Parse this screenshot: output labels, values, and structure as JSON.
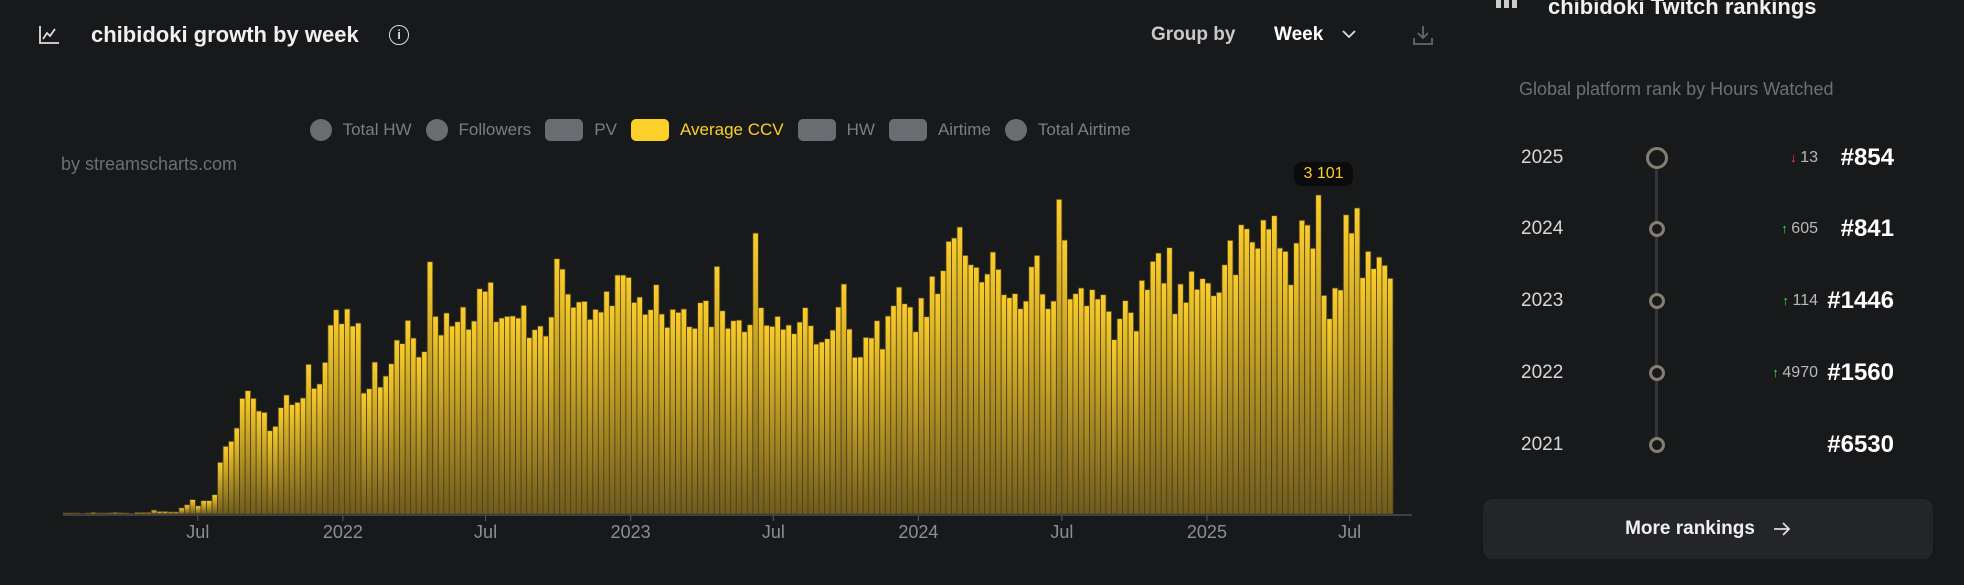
{
  "header": {
    "title": "chibidoki growth by week",
    "group_by_label": "Group by",
    "group_by_value": "Week"
  },
  "legend": [
    {
      "label": "Total HW",
      "shape": "circle",
      "active": false
    },
    {
      "label": "Followers",
      "shape": "circle",
      "active": false
    },
    {
      "label": "PV",
      "shape": "square",
      "active": false
    },
    {
      "label": "Average CCV",
      "shape": "square",
      "active": true
    },
    {
      "label": "HW",
      "shape": "square",
      "active": false
    },
    {
      "label": "Airtime",
      "shape": "square",
      "active": false
    },
    {
      "label": "Total Airtime",
      "shape": "circle",
      "active": false
    }
  ],
  "credit": "by streamscharts.com",
  "tooltip": {
    "text": "3 101"
  },
  "colors": {
    "bar_top": "#fbcd2b",
    "bar_bottom": "#6f5b1e",
    "accent": "#fcd02a",
    "up": "#3ddc4a",
    "down": "#f04a4a"
  },
  "chart_data": {
    "type": "bar",
    "title": "chibidoki growth by week",
    "series_name": "Average CCV",
    "start_week": "2021-01-11",
    "ylim": [
      0,
      3101
    ],
    "grid": false,
    "x_ticks": [
      {
        "label": "Jul",
        "date": "2021-07-01"
      },
      {
        "label": "2022",
        "date": "2022-01-01"
      },
      {
        "label": "Jul",
        "date": "2022-07-01"
      },
      {
        "label": "2023",
        "date": "2023-01-01"
      },
      {
        "label": "Jul",
        "date": "2023-07-01"
      },
      {
        "label": "2024",
        "date": "2024-01-01"
      },
      {
        "label": "Jul",
        "date": "2024-07-01"
      },
      {
        "label": "2025",
        "date": "2025-01-01"
      },
      {
        "label": "Jul",
        "date": "2025-07-01"
      }
    ],
    "values": [
      10,
      10,
      10,
      5,
      10,
      15,
      10,
      10,
      12,
      15,
      12,
      10,
      5,
      15,
      15,
      15,
      38,
      25,
      25,
      20,
      20,
      60,
      90,
      140,
      80,
      130,
      130,
      188,
      502,
      658,
      706,
      836,
      1124,
      1199,
      1124,
      1001,
      988,
      810,
      852,
      1034,
      1157,
      1063,
      1085,
      1128,
      1455,
      1221,
      1264,
      1474,
      1837,
      1986,
      1850,
      1993,
      1827,
      1856,
      1176,
      1218,
      1477,
      1234,
      1341,
      1461,
      1691,
      1656,
      1882,
      1711,
      1526,
      1578,
      2453,
      1921,
      1740,
      1954,
      1827,
      1869,
      2012,
      1795,
      1876,
      2190,
      2164,
      2252,
      1869,
      1905,
      1921,
      1925,
      1905,
      2028,
      1714,
      1792,
      1827,
      1730,
      1915,
      2482,
      2381,
      2138,
      2009,
      2061,
      2067,
      1892,
      1989,
      1963,
      2164,
      2025,
      2323,
      2323,
      2300,
      2057,
      2109,
      1941,
      1986,
      2229,
      1944,
      1814,
      1989,
      1960,
      1993,
      1821,
      1805,
      2054,
      2074,
      1821,
      2407,
      1976,
      1805,
      1879,
      1885,
      1772,
      1840,
      2731,
      2006,
      1834,
      1824,
      1921,
      1795,
      1837,
      1753,
      1866,
      2006,
      1831,
      1652,
      1672,
      1704,
      1788,
      2012,
      2236,
      1798,
      1523,
      1526,
      1717,
      1711,
      1879,
      1604,
      1925,
      2025,
      2206,
      2044,
      2012,
      1772,
      2100,
      1918,
      2310,
      2142,
      2365,
      2650,
      2683,
      2790,
      2514,
      2423,
      2398,
      2255,
      2333,
      2547,
      2378,
      2132,
      2103,
      2142,
      1996,
      2070,
      2404,
      2514,
      2138,
      1996,
      2070,
      3059,
      2663,
      2090,
      2142,
      2197,
      2025,
      2181,
      2090,
      2132,
      1970,
      1695,
      1899,
      2074,
      1959,
      1779,
      2271,
      2181,
      2456,
      2537,
      2245,
      2589,
      1947,
      2236,
      2057,
      2359,
      2184,
      2288,
      2245,
      2122,
      2155,
      2423,
      2660,
      2326,
      2812,
      2773,
      2644,
      2583,
      2858,
      2770,
      2900,
      2586,
      2553,
      2229,
      2634,
      2855,
      2809,
      2583,
      3101,
      2125,
      1899,
      2197,
      2178,
      2909,
      2731,
      2975,
      2297,
      2553,
      2385,
      2498,
      2417,
      2291
    ]
  },
  "rankings": {
    "title": "chibidoki Twitch rankings",
    "subtitle": "Global platform rank by Hours Watched",
    "rows": [
      {
        "year": "2025",
        "direction": "down",
        "change": "13",
        "rank": "#854"
      },
      {
        "year": "2024",
        "direction": "up",
        "change": "605",
        "rank": "#841"
      },
      {
        "year": "2023",
        "direction": "up",
        "change": "114",
        "rank": "#1446"
      },
      {
        "year": "2022",
        "direction": "up",
        "change": "4970",
        "rank": "#1560"
      },
      {
        "year": "2021",
        "direction": "none",
        "change": "",
        "rank": "#6530"
      }
    ],
    "more_label": "More rankings"
  }
}
